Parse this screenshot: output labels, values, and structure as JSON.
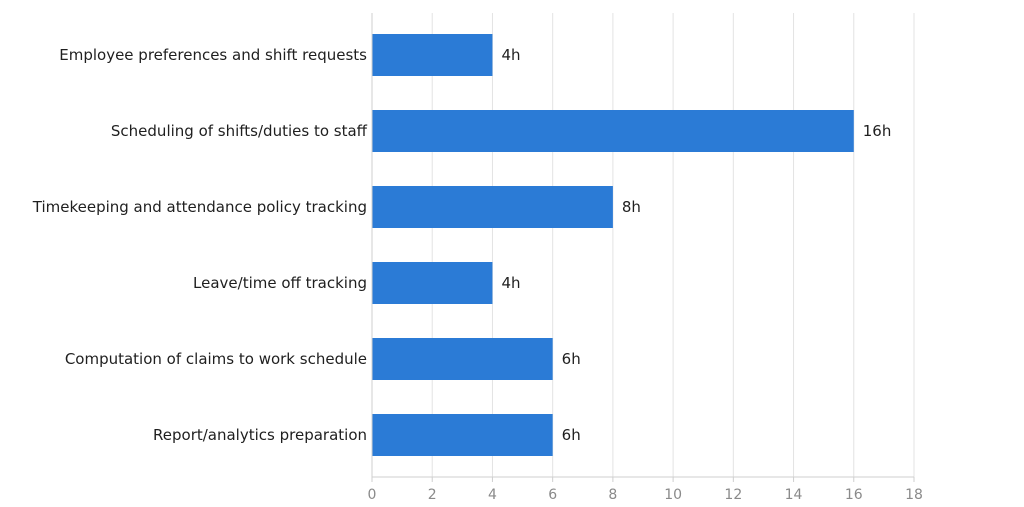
{
  "chart_data": {
    "type": "bar",
    "orientation": "horizontal",
    "categories": [
      "Employee preferences and shift requests",
      "Scheduling of shifts/duties to staff",
      "Timekeeping and attendance policy tracking",
      "Leave/time off tracking",
      "Computation of claims to work schedule",
      "Report/analytics preparation"
    ],
    "values": [
      4,
      16,
      8,
      4,
      6,
      6
    ],
    "value_labels": [
      "4h",
      "16h",
      "8h",
      "4h",
      "6h",
      "6h"
    ],
    "x_ticks": [
      "0",
      "2",
      "4",
      "6",
      "8",
      "10",
      "12",
      "14",
      "16",
      "18"
    ],
    "xlim": [
      0,
      18
    ],
    "grid": true,
    "bar_color": "#2b7bd6",
    "title": "",
    "xlabel": "",
    "ylabel": ""
  }
}
